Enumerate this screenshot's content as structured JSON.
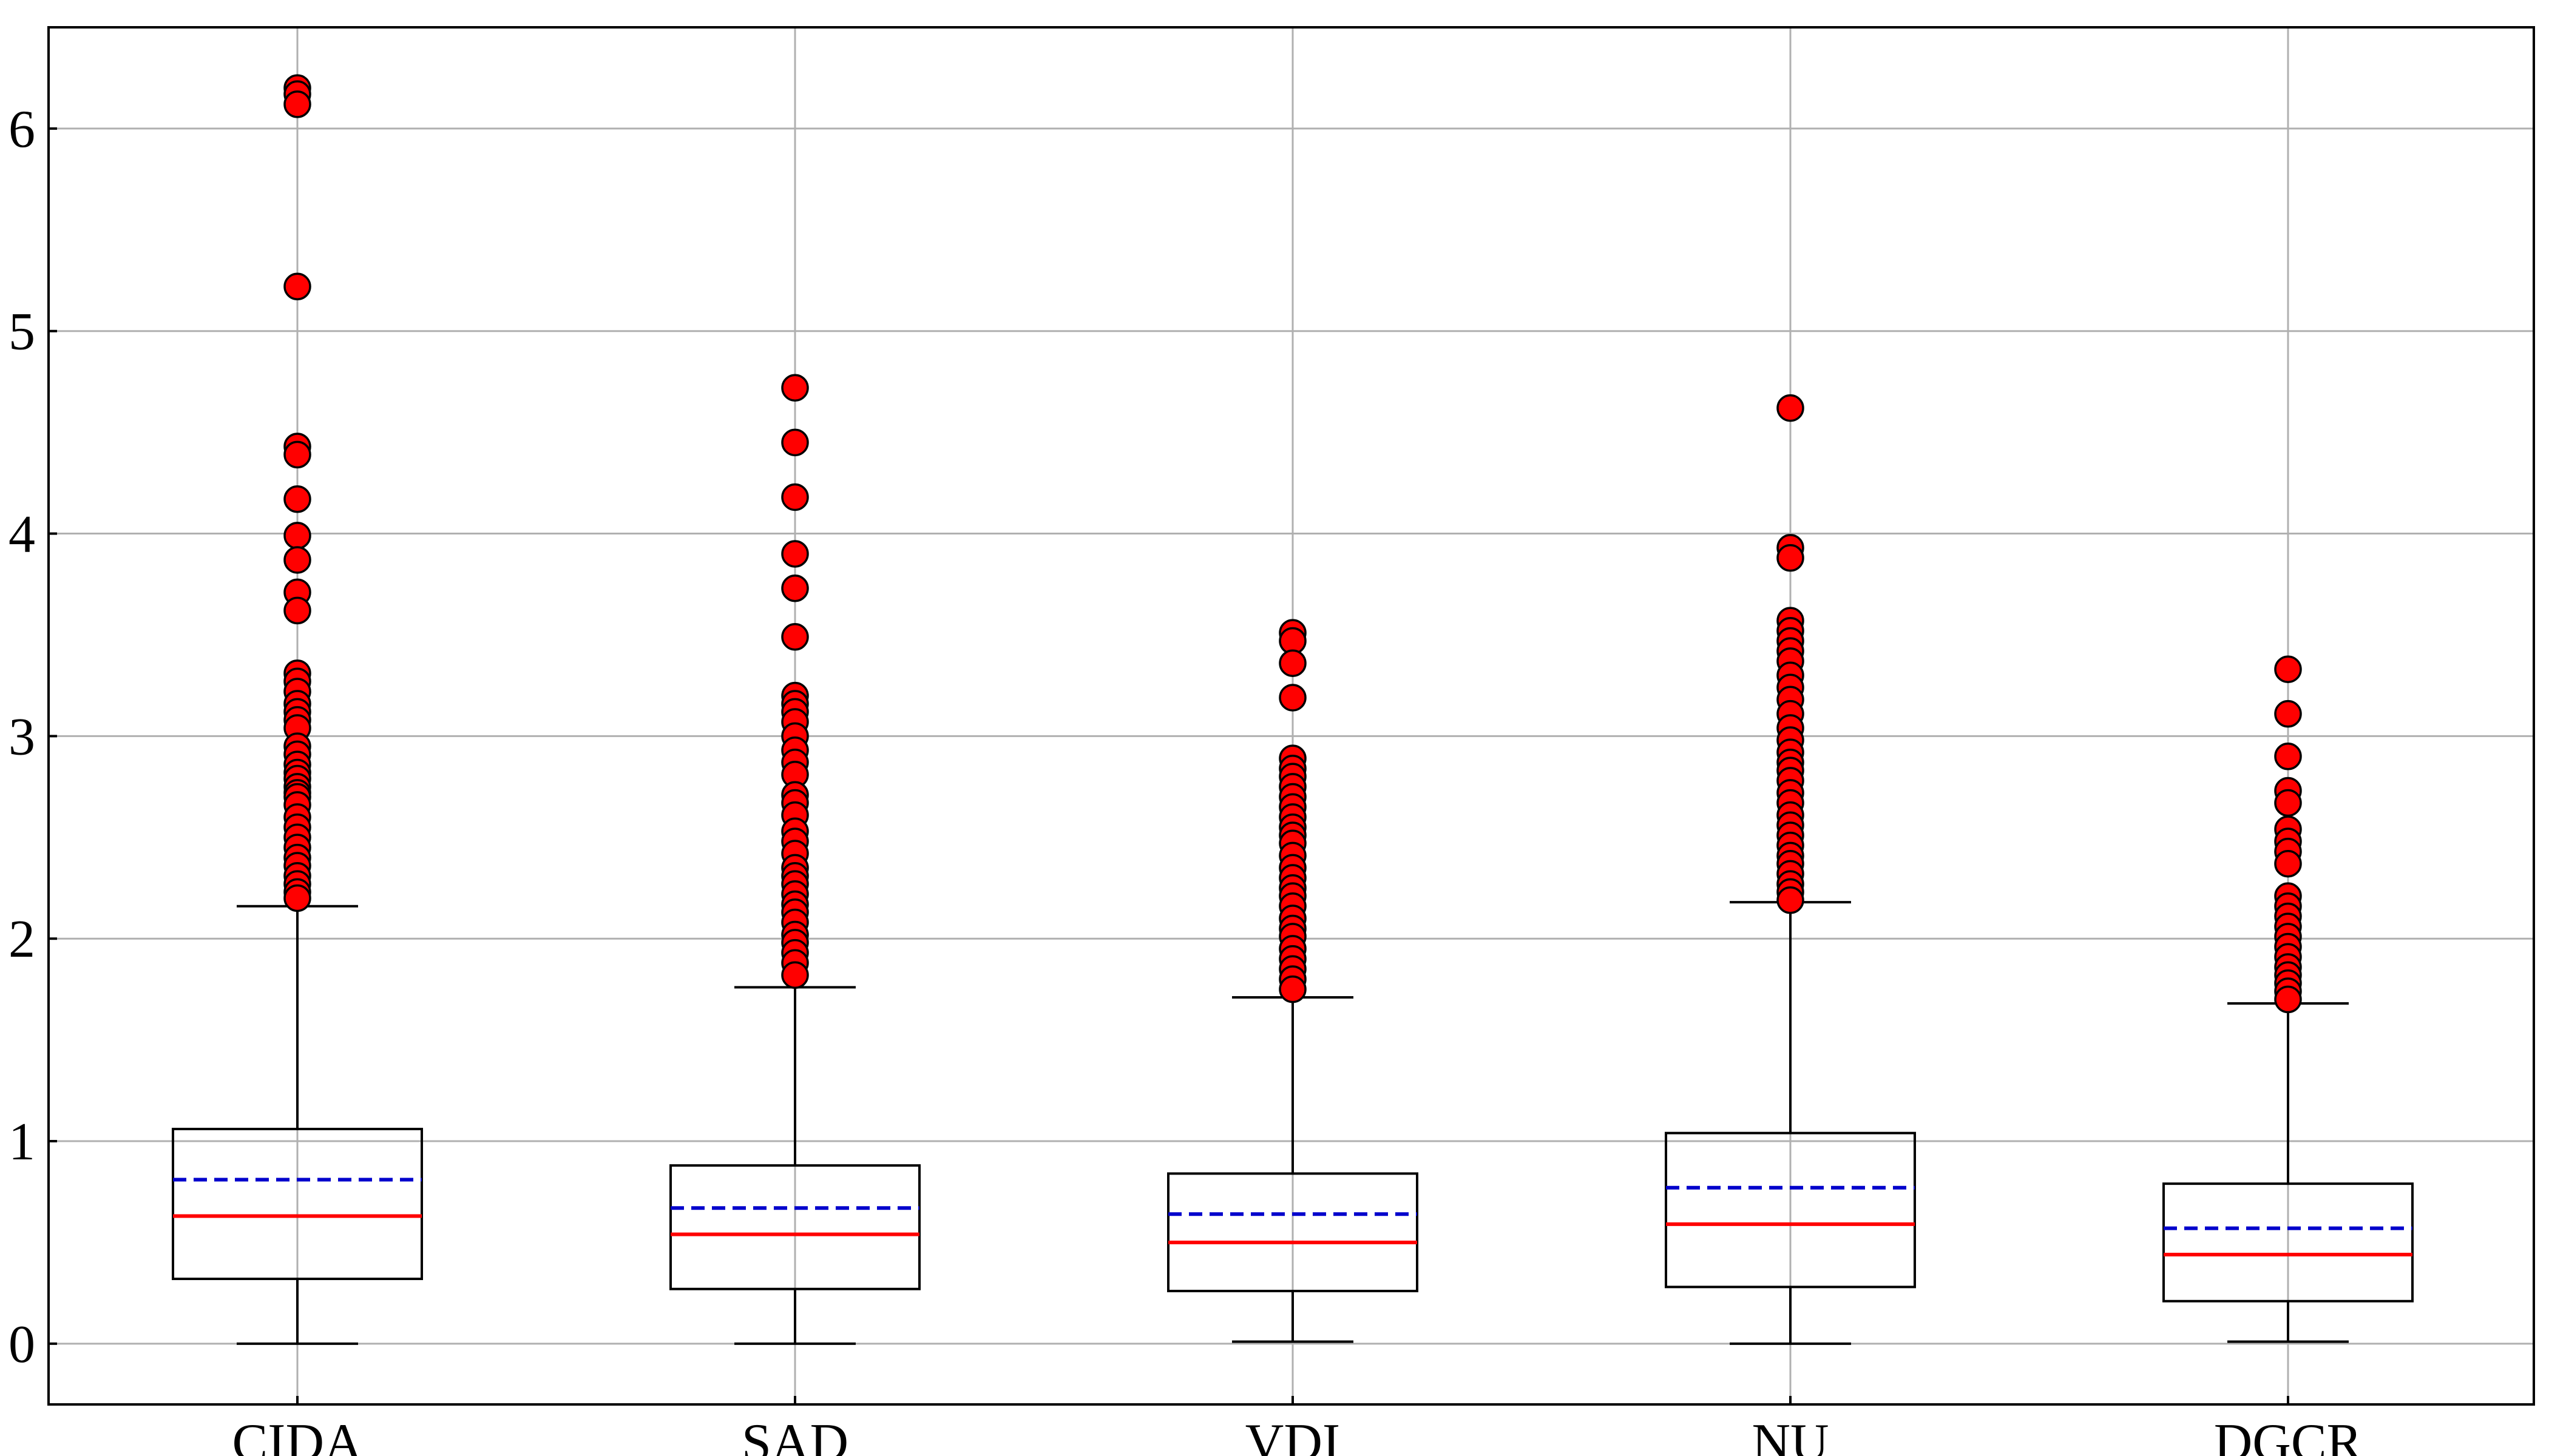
{
  "chart_data": {
    "type": "box",
    "title": "",
    "xlabel": "",
    "ylabel": "",
    "categories": [
      "CIDA",
      "SAD",
      "VDI",
      "NU",
      "DGCR"
    ],
    "ylim": [
      -0.3,
      6.5
    ],
    "yticks": [
      "0",
      "1",
      "2",
      "3",
      "4",
      "5",
      "6"
    ],
    "grid": true,
    "colors": {
      "median": "#ff0000",
      "mean": "#0000cc",
      "outlier_fill": "#ff0000",
      "box": "#000000",
      "grid": "#b0b0b0"
    },
    "boxes": [
      {
        "name": "CIDA",
        "whisker_low": 0.0,
        "q1": 0.32,
        "median": 0.63,
        "mean": 0.81,
        "q3": 1.06,
        "whisker_high": 2.16,
        "outliers": [
          6.2,
          6.17,
          6.12,
          5.22,
          4.43,
          4.39,
          4.17,
          3.99,
          3.87,
          3.71,
          3.62,
          3.31,
          3.27,
          3.22,
          3.16,
          3.12,
          3.08,
          3.04,
          2.95,
          2.91,
          2.86,
          2.82,
          2.79,
          2.75,
          2.72,
          2.7,
          2.66,
          2.6,
          2.55,
          2.5,
          2.45,
          2.4,
          2.36,
          2.31,
          2.27,
          2.23,
          2.2
        ]
      },
      {
        "name": "SAD",
        "whisker_low": 0.0,
        "q1": 0.27,
        "median": 0.54,
        "mean": 0.67,
        "q3": 0.88,
        "whisker_high": 1.76,
        "outliers": [
          4.72,
          4.45,
          4.18,
          3.9,
          3.73,
          3.49,
          3.2,
          3.16,
          3.12,
          3.07,
          3.0,
          2.93,
          2.87,
          2.81,
          2.71,
          2.67,
          2.61,
          2.53,
          2.48,
          2.42,
          2.35,
          2.31,
          2.27,
          2.22,
          2.17,
          2.13,
          2.08,
          2.02,
          1.98,
          1.93,
          1.88,
          1.82
        ]
      },
      {
        "name": "VDI",
        "whisker_low": 0.01,
        "q1": 0.26,
        "median": 0.5,
        "mean": 0.64,
        "q3": 0.84,
        "whisker_high": 1.71,
        "outliers": [
          3.51,
          3.47,
          3.36,
          3.19,
          2.89,
          2.84,
          2.8,
          2.75,
          2.7,
          2.65,
          2.6,
          2.55,
          2.51,
          2.47,
          2.41,
          2.35,
          2.3,
          2.25,
          2.21,
          2.16,
          2.1,
          2.05,
          2.01,
          1.95,
          1.9,
          1.85,
          1.8,
          1.75
        ]
      },
      {
        "name": "NU",
        "whisker_low": 0.0,
        "q1": 0.28,
        "median": 0.59,
        "mean": 0.77,
        "q3": 1.04,
        "whisker_high": 2.18,
        "outliers": [
          4.62,
          3.93,
          3.88,
          3.57,
          3.52,
          3.47,
          3.42,
          3.37,
          3.3,
          3.24,
          3.18,
          3.11,
          3.04,
          2.98,
          2.92,
          2.87,
          2.83,
          2.78,
          2.72,
          2.67,
          2.61,
          2.56,
          2.51,
          2.46,
          2.41,
          2.37,
          2.32,
          2.27,
          2.23,
          2.19
        ]
      },
      {
        "name": "DGCR",
        "whisker_low": 0.01,
        "q1": 0.21,
        "median": 0.44,
        "mean": 0.57,
        "q3": 0.79,
        "whisker_high": 1.68,
        "outliers": [
          3.33,
          3.11,
          2.9,
          2.73,
          2.67,
          2.54,
          2.48,
          2.43,
          2.37,
          2.21,
          2.16,
          2.11,
          2.06,
          2.01,
          1.96,
          1.91,
          1.86,
          1.82,
          1.78,
          1.74,
          1.7
        ]
      }
    ]
  }
}
